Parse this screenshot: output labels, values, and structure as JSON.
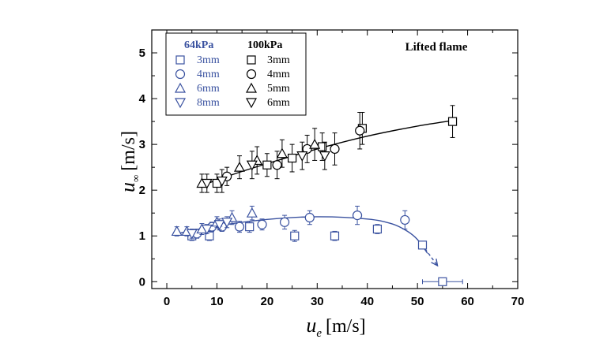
{
  "chart_data": {
    "type": "scatter",
    "title": "",
    "annotation": "Lifted flame",
    "xlabel": {
      "main": "u",
      "sub": "e",
      "unit": "[m/s]"
    },
    "ylabel": {
      "main": "u",
      "sub": "∞",
      "unit": "[m/s]"
    },
    "xlim": [
      -3,
      70
    ],
    "ylim": [
      -0.15,
      5.5
    ],
    "xticks": [
      "0",
      "10",
      "20",
      "30",
      "40",
      "50",
      "60",
      "70"
    ],
    "yticks": [
      "0",
      "1",
      "2",
      "3",
      "4",
      "5"
    ],
    "grid": false,
    "legend_placement": "top-left",
    "legend_groups": [
      {
        "title": "64kPa",
        "color": "#3a52a0",
        "labels": [
          "3mm",
          "4mm",
          "6mm",
          "8mm"
        ]
      },
      {
        "title": "100kPa",
        "color": "#000000",
        "labels": [
          "3mm",
          "4mm",
          "5mm",
          "6mm"
        ]
      }
    ],
    "series": [
      {
        "group": "64kPa",
        "label": "3mm",
        "marker": "square",
        "color": "#3a52a0",
        "points": [
          [
            5,
            1.0
          ],
          [
            8.5,
            1.0
          ],
          [
            16.5,
            1.2
          ],
          [
            25.5,
            1.0
          ],
          [
            33.5,
            1.0
          ],
          [
            42,
            1.15
          ],
          [
            51,
            0.8
          ],
          [
            55,
            0.0
          ]
        ],
        "errors": [
          0.1,
          0.1,
          0.12,
          0.12,
          0.1,
          0.1,
          0.08,
          0.03
        ],
        "xerrors": [
          0,
          0,
          0,
          0,
          0,
          0,
          0,
          4
        ]
      },
      {
        "group": "64kPa",
        "label": "4mm",
        "marker": "circle",
        "color": "#3a52a0",
        "points": [
          [
            6,
            1.05
          ],
          [
            9,
            1.2
          ],
          [
            11,
            1.2
          ],
          [
            14.5,
            1.2
          ],
          [
            19,
            1.25
          ],
          [
            23.5,
            1.3
          ],
          [
            28.5,
            1.4
          ],
          [
            38,
            1.45
          ],
          [
            47.5,
            1.35
          ]
        ],
        "errors": [
          0.1,
          0.1,
          0.1,
          0.12,
          0.12,
          0.15,
          0.15,
          0.2,
          0.2
        ],
        "xerrors": [
          0,
          0,
          0,
          0,
          0,
          0,
          0,
          0,
          0
        ]
      },
      {
        "group": "64kPa",
        "label": "6mm",
        "marker": "triangle-up",
        "color": "#3a52a0",
        "points": [
          [
            2,
            1.1
          ],
          [
            4,
            1.1
          ],
          [
            7,
            1.15
          ],
          [
            10,
            1.3
          ],
          [
            13,
            1.4
          ],
          [
            17,
            1.5
          ]
        ],
        "errors": [
          0.1,
          0.1,
          0.12,
          0.12,
          0.15,
          0.15
        ],
        "xerrors": [
          0,
          0,
          0,
          0,
          0,
          0
        ]
      },
      {
        "group": "64kPa",
        "label": "8mm",
        "marker": "triangle-down",
        "color": "#3a52a0",
        "points": [
          [
            5,
            1.05
          ],
          [
            8,
            1.15
          ],
          [
            10.5,
            1.25
          ],
          [
            12,
            1.3
          ]
        ],
        "errors": [
          0.1,
          0.1,
          0.12,
          0.12
        ],
        "xerrors": [
          0,
          0,
          0,
          0
        ]
      },
      {
        "group": "100kPa",
        "label": "3mm",
        "marker": "square",
        "color": "#000000",
        "points": [
          [
            10,
            2.15
          ],
          [
            20,
            2.55
          ],
          [
            25,
            2.7
          ],
          [
            31,
            2.95
          ],
          [
            39,
            3.35
          ],
          [
            57,
            3.5
          ]
        ],
        "errors": [
          0.2,
          0.25,
          0.3,
          0.3,
          0.35,
          0.35
        ],
        "xerrors": [
          0,
          0,
          0,
          0,
          0,
          0
        ]
      },
      {
        "group": "100kPa",
        "label": "4mm",
        "marker": "circle",
        "color": "#000000",
        "points": [
          [
            12,
            2.3
          ],
          [
            22,
            2.55
          ],
          [
            28,
            2.9
          ],
          [
            33.5,
            2.9
          ],
          [
            38.5,
            3.3
          ]
        ],
        "errors": [
          0.2,
          0.3,
          0.3,
          0.35,
          0.4
        ],
        "xerrors": [
          0,
          0,
          0,
          0,
          0
        ]
      },
      {
        "group": "100kPa",
        "label": "5mm",
        "marker": "triangle-up",
        "color": "#000000",
        "points": [
          [
            7,
            2.15
          ],
          [
            14.5,
            2.5
          ],
          [
            18,
            2.65
          ],
          [
            23,
            2.8
          ],
          [
            29.5,
            3.0
          ]
        ],
        "errors": [
          0.2,
          0.25,
          0.3,
          0.3,
          0.35
        ],
        "xerrors": [
          0,
          0,
          0,
          0,
          0
        ]
      },
      {
        "group": "100kPa",
        "label": "6mm",
        "marker": "triangle-down",
        "color": "#000000",
        "points": [
          [
            8,
            2.15
          ],
          [
            11,
            2.2
          ],
          [
            17,
            2.55
          ],
          [
            27,
            2.75
          ],
          [
            31.5,
            2.75
          ]
        ],
        "errors": [
          0.2,
          0.25,
          0.3,
          0.3,
          0.3
        ],
        "xerrors": [
          0,
          0,
          0,
          0,
          0
        ]
      }
    ],
    "fit_curves": [
      {
        "group": "100kPa",
        "color": "#000000",
        "points": [
          [
            7,
            2.1
          ],
          [
            12,
            2.3
          ],
          [
            20,
            2.58
          ],
          [
            30,
            2.9
          ],
          [
            40,
            3.18
          ],
          [
            50,
            3.4
          ],
          [
            57,
            3.52
          ]
        ]
      },
      {
        "group": "64kPa",
        "color": "#3a52a0",
        "points": [
          [
            2,
            1.05
          ],
          [
            10,
            1.22
          ],
          [
            20,
            1.36
          ],
          [
            30,
            1.42
          ],
          [
            40,
            1.37
          ],
          [
            45,
            1.26
          ],
          [
            48,
            1.1
          ],
          [
            50,
            0.92
          ],
          [
            52,
            0.62
          ]
        ]
      }
    ],
    "extrapolation": {
      "color": "#3a52a0",
      "from": [
        51.5,
        0.72
      ],
      "to": [
        54,
        0.35
      ]
    }
  }
}
